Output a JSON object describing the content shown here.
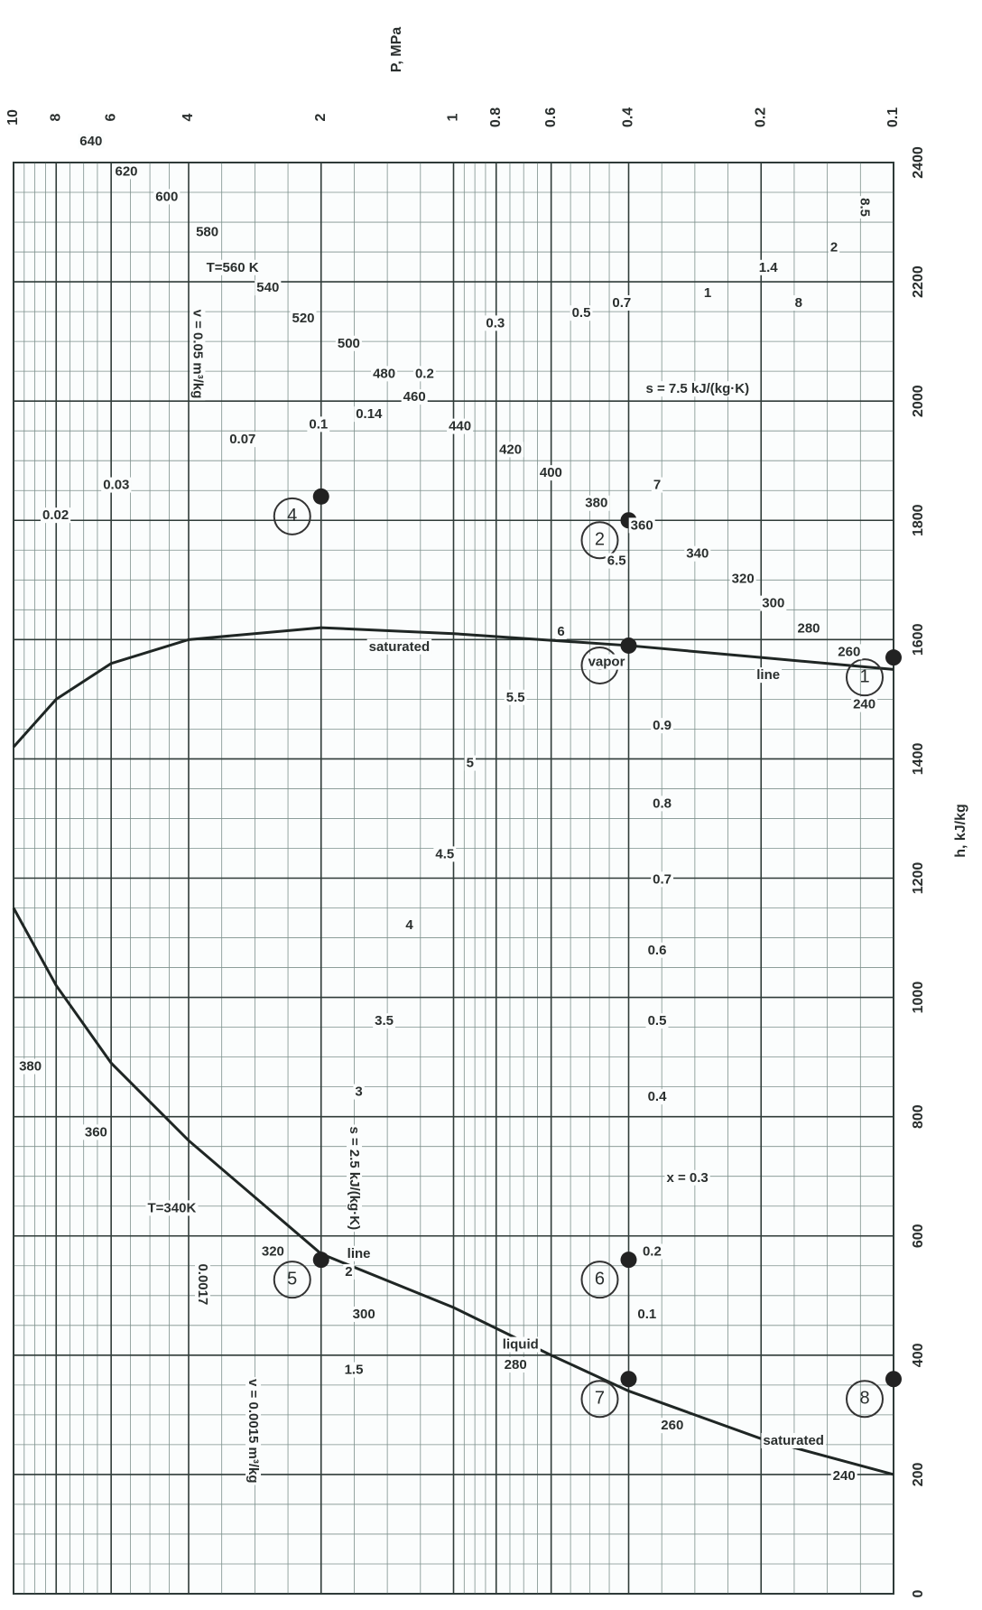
{
  "chart_data": {
    "type": "line",
    "x_label": "P, MPa",
    "y_label": "h, kJ/kg",
    "log_x": true,
    "xlim": [
      0.1,
      10
    ],
    "xticks": [
      0.1,
      0.2,
      0.4,
      0.6,
      0.8,
      1,
      2,
      4,
      6,
      8,
      10
    ],
    "ylim": [
      0,
      2400
    ],
    "yticks": [
      0,
      200,
      400,
      600,
      800,
      1000,
      1200,
      1400,
      1600,
      1800,
      2000,
      2200,
      2400
    ],
    "grid": true,
    "color": "#2f3b38",
    "series": [
      {
        "color": "#1f2624",
        "P": [
          0.1,
          0.2,
          0.4,
          0.6,
          1,
          2,
          4,
          6,
          8,
          10
        ],
        "h": [
          200,
          260,
          340,
          400,
          480,
          570,
          760,
          890,
          1020,
          1150
        ]
      },
      {
        "color": "#1f2624",
        "P": [
          0.1,
          0.2,
          0.4,
          1,
          2,
          4,
          6,
          8,
          10
        ],
        "h": [
          1550,
          1570,
          1590,
          1610,
          1620,
          1600,
          1560,
          1500,
          1420
        ]
      }
    ],
    "points": [
      {
        "name": "1",
        "P": 0.1,
        "h": 1570
      },
      {
        "name": "2",
        "P": 0.4,
        "h": 1800
      },
      {
        "name": "3",
        "P": 0.4,
        "h": 1590
      },
      {
        "name": "4",
        "P": 2,
        "h": 1840
      },
      {
        "name": "5",
        "P": 2,
        "h": 560
      },
      {
        "name": "6",
        "P": 0.4,
        "h": 560
      },
      {
        "name": "7",
        "P": 0.4,
        "h": 360
      },
      {
        "name": "8",
        "P": 0.1,
        "h": 360
      }
    ],
    "annotations": [
      "T=560 K",
      "640",
      "620",
      "600",
      "580",
      "540",
      "520",
      "500",
      "480",
      "460",
      "440",
      "420",
      "400",
      "380",
      "360",
      "340",
      "320",
      "300",
      "280",
      "260",
      "240",
      "380",
      "360",
      "T=340K",
      "320",
      "300",
      "280",
      "260",
      "240",
      "saturated",
      "vapor",
      "line",
      "saturated",
      "liquid",
      "line",
      "x = 0.3",
      "0.1",
      "0.2",
      "0.4",
      "0.5",
      "0.6",
      "0.7",
      "0.8",
      "0.9",
      "s = 2.5 kJ/(kg·K)",
      "3",
      "3.5",
      "4",
      "4.5",
      "5",
      "5.5",
      "6",
      "6.5",
      "7",
      "s = 7.5 kJ/(kg·K)",
      "8",
      "8.5",
      "v = 0.0015 m³/kg",
      "1.5",
      "2",
      "0.0017",
      "v = 0.05 m³/kg",
      "0.07",
      "0.1",
      "0.14",
      "0.2",
      "0.3",
      "0.5",
      "0.7",
      "1",
      "1.4",
      "2",
      "0.02",
      "0.03"
    ]
  }
}
